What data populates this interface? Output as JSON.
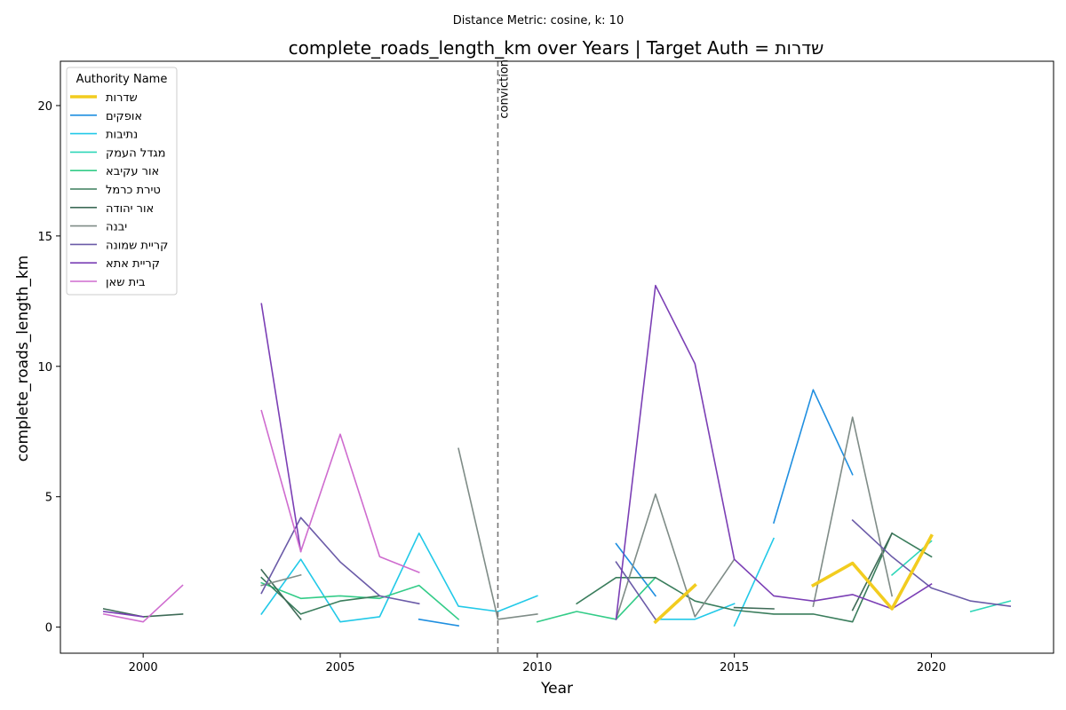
{
  "chart_data": {
    "type": "line",
    "suptitle": "Distance Metric: cosine, k: 10",
    "title": "complete_roads_length_km over Years | Target Auth = שדרות",
    "xlabel": "Year",
    "ylabel": "complete_roads_length_km",
    "xlim": [
      1997.9,
      2023.1
    ],
    "ylim": [
      -1.0,
      21.7
    ],
    "x_ticks": [
      2000,
      2005,
      2010,
      2015,
      2020
    ],
    "y_ticks": [
      0,
      5,
      10,
      15,
      20
    ],
    "legend": {
      "title": "Authority Name",
      "location": "upper left"
    },
    "annotation": {
      "x": 2009,
      "label": "conviction",
      "style": "dashed",
      "color": "#777777"
    },
    "series": [
      {
        "name": "שדרות",
        "color": "#f2cc1f",
        "width": 3.6,
        "points": [
          [
            2013,
            0.2
          ],
          [
            2014,
            1.6
          ],
          [
            null,
            null
          ],
          [
            2017,
            1.6
          ],
          [
            2018,
            2.45
          ],
          [
            2019,
            0.7
          ],
          [
            2020,
            3.5
          ]
        ]
      },
      {
        "name": "אופקים",
        "color": "#1f8fe0",
        "width": 1.6,
        "points": [
          [
            2007,
            0.3
          ],
          [
            2008,
            0.05
          ],
          [
            null,
            null
          ],
          [
            2012,
            3.2
          ],
          [
            2013,
            1.2
          ],
          [
            null,
            null
          ],
          [
            2016,
            4.0
          ],
          [
            2017,
            9.1
          ],
          [
            2018,
            5.85
          ]
        ]
      },
      {
        "name": "נתיבות",
        "color": "#22c9e8",
        "width": 1.6,
        "points": [
          [
            2003,
            0.5
          ],
          [
            2004,
            2.6
          ],
          [
            2005,
            0.2
          ],
          [
            2006,
            0.4
          ],
          [
            2007,
            3.6
          ],
          [
            2008,
            0.8
          ],
          [
            2009,
            0.6
          ],
          [
            2010,
            1.2
          ],
          [
            null,
            null
          ],
          [
            2013,
            0.3
          ],
          [
            2014,
            0.3
          ],
          [
            2015,
            0.9
          ],
          [
            null,
            null
          ],
          [
            2015,
            0.05
          ],
          [
            2016,
            3.4
          ]
        ]
      },
      {
        "name": "מגדל העמק",
        "color": "#2fd6b8",
        "width": 1.6,
        "points": [
          [
            2019,
            2.0
          ],
          [
            2020,
            3.3
          ],
          [
            null,
            null
          ],
          [
            2021,
            0.6
          ],
          [
            2022,
            1.0
          ]
        ]
      },
      {
        "name": "אור עקיבא",
        "color": "#33cc88",
        "width": 1.6,
        "points": [
          [
            2003,
            1.7
          ],
          [
            2004,
            1.1
          ],
          [
            2005,
            1.2
          ],
          [
            2006,
            1.1
          ],
          [
            2007,
            1.6
          ],
          [
            2008,
            0.3
          ],
          [
            null,
            null
          ],
          [
            2010,
            0.2
          ],
          [
            2011,
            0.6
          ],
          [
            2012,
            0.3
          ],
          [
            2013,
            1.9
          ]
        ]
      },
      {
        "name": "טירת כרמל",
        "color": "#3a7d5c",
        "width": 1.6,
        "points": [
          [
            2003,
            1.9
          ],
          [
            2004,
            0.5
          ],
          [
            2005,
            1.0
          ],
          [
            2006,
            1.2
          ],
          [
            null,
            null
          ],
          [
            2011,
            0.9
          ],
          [
            2012,
            1.9
          ],
          [
            2013,
            1.9
          ],
          [
            2014,
            1.0
          ],
          [
            2015,
            0.65
          ],
          [
            2016,
            0.5
          ],
          [
            2017,
            0.5
          ],
          [
            2018,
            0.2
          ],
          [
            2019,
            3.6
          ],
          [
            2020,
            2.7
          ]
        ]
      },
      {
        "name": "אור יהודה",
        "color": "#3e6b57",
        "width": 1.6,
        "points": [
          [
            1999,
            0.7
          ],
          [
            2000,
            0.4
          ],
          [
            2001,
            0.5
          ],
          [
            null,
            null
          ],
          [
            2003,
            2.2
          ],
          [
            2004,
            0.3
          ],
          [
            null,
            null
          ],
          [
            2015,
            0.75
          ],
          [
            2016,
            0.7
          ],
          [
            null,
            null
          ],
          [
            2018,
            0.65
          ],
          [
            2019,
            3.6
          ]
        ]
      },
      {
        "name": "יבנה",
        "color": "#7f8c87",
        "width": 1.6,
        "points": [
          [
            2003,
            1.6
          ],
          [
            2004,
            2.0
          ],
          [
            null,
            null
          ],
          [
            2008,
            6.85
          ],
          [
            2009,
            0.3
          ],
          [
            2010,
            0.5
          ],
          [
            null,
            null
          ],
          [
            2012,
            0.3
          ],
          [
            2013,
            5.1
          ],
          [
            2014,
            0.4
          ],
          [
            2015,
            2.6
          ],
          [
            null,
            null
          ],
          [
            2017,
            0.8
          ],
          [
            2018,
            8.05
          ],
          [
            2019,
            1.2
          ]
        ]
      },
      {
        "name": "קריית שמונה",
        "color": "#6b5ba8",
        "width": 1.6,
        "points": [
          [
            2003,
            1.3
          ],
          [
            2004,
            4.2
          ],
          [
            2005,
            2.5
          ],
          [
            2006,
            1.2
          ],
          [
            2007,
            0.9
          ],
          [
            null,
            null
          ],
          [
            2012,
            2.5
          ],
          [
            2013,
            0.3
          ],
          [
            null,
            null
          ],
          [
            2018,
            4.1
          ],
          [
            2019,
            2.7
          ],
          [
            2020,
            1.5
          ],
          [
            2021,
            1.0
          ],
          [
            2022,
            0.8
          ]
        ]
      },
      {
        "name": "קריית אתא",
        "color": "#7b3fb5",
        "width": 1.6,
        "points": [
          [
            1999,
            0.6
          ],
          [
            2000,
            0.4
          ],
          [
            null,
            null
          ],
          [
            2003,
            12.4
          ],
          [
            2004,
            2.9
          ],
          [
            null,
            null
          ],
          [
            2012,
            0.3
          ],
          [
            2013,
            13.1
          ],
          [
            2014,
            10.1
          ],
          [
            2015,
            2.6
          ],
          [
            2016,
            1.2
          ],
          [
            2017,
            1.0
          ],
          [
            2018,
            1.25
          ],
          [
            2019,
            0.7
          ],
          [
            2020,
            1.65
          ]
        ]
      },
      {
        "name": "בית שאן",
        "color": "#cf6ccf",
        "width": 1.6,
        "points": [
          [
            1999,
            0.5
          ],
          [
            2000,
            0.2
          ],
          [
            2001,
            1.6
          ],
          [
            null,
            null
          ],
          [
            2003,
            8.3
          ],
          [
            2004,
            2.9
          ],
          [
            2005,
            7.4
          ],
          [
            2006,
            2.7
          ],
          [
            2007,
            2.1
          ]
        ]
      }
    ]
  }
}
